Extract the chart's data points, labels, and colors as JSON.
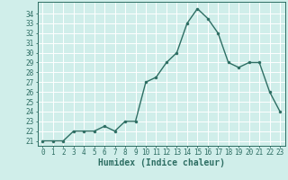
{
  "x": [
    0,
    1,
    2,
    3,
    4,
    5,
    6,
    7,
    8,
    9,
    10,
    11,
    12,
    13,
    14,
    15,
    16,
    17,
    18,
    19,
    20,
    21,
    22,
    23
  ],
  "y": [
    21,
    21,
    21,
    22,
    22,
    22,
    22.5,
    22,
    23,
    23,
    27,
    27.5,
    29,
    30,
    33,
    34.5,
    33.5,
    32,
    29,
    28.5,
    29,
    29,
    26,
    24
  ],
  "line_color": "#2d6e63",
  "marker_color": "#2d6e63",
  "bg_color": "#d0eeea",
  "grid_color": "#ffffff",
  "xlabel": "Humidex (Indice chaleur)",
  "ylim": [
    20.5,
    35.2
  ],
  "xlim": [
    -0.5,
    23.5
  ],
  "yticks": [
    21,
    22,
    23,
    24,
    25,
    26,
    27,
    28,
    29,
    30,
    31,
    32,
    33,
    34
  ],
  "xtick_labels": [
    "0",
    "1",
    "2",
    "3",
    "4",
    "5",
    "6",
    "7",
    "8",
    "9",
    "10",
    "11",
    "12",
    "13",
    "14",
    "15",
    "16",
    "17",
    "18",
    "19",
    "20",
    "21",
    "22",
    "23"
  ],
  "xlabel_fontsize": 7,
  "tick_fontsize": 5.5,
  "line_width": 1.0,
  "marker_size": 2.2
}
